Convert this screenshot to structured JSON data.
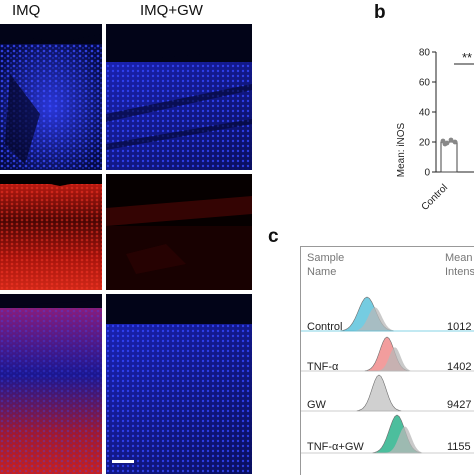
{
  "microscopy": {
    "column_labels": [
      "IMQ",
      "IMQ+GW"
    ]
  },
  "panel_b": {
    "letter": "b",
    "ylabel": "Mean: iNOS",
    "yticks": [
      "0",
      "20",
      "40",
      "60",
      "80"
    ],
    "xtick": "Control",
    "significance": "**"
  },
  "panel_c": {
    "letter": "c",
    "header_left": [
      "Sample",
      "Name"
    ],
    "header_right": [
      "Mean",
      "Intensi"
    ],
    "rows": [
      {
        "name": "Control",
        "value": "1012"
      },
      {
        "name": "TNF-α",
        "value": "1402"
      },
      {
        "name": "GW",
        "value": "9427"
      },
      {
        "name": "TNF-α+GW",
        "value": "1155"
      }
    ],
    "row_colors": [
      "#5ec4dc",
      "#f08c8c",
      "#c8c8c8",
      "#2db38c"
    ]
  },
  "chart_data": {
    "type": "bar",
    "categories": [
      "Control"
    ],
    "values": [
      20
    ],
    "ylabel": "Mean: iNOS",
    "ylim": [
      0,
      80
    ],
    "yticks": [
      0,
      20,
      40,
      60,
      80
    ],
    "annotations": [
      "**"
    ]
  }
}
